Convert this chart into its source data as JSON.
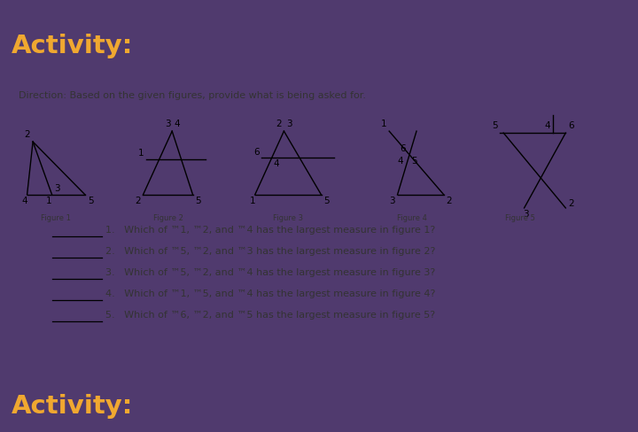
{
  "bg_purple": "#503a6e",
  "bg_white": "#ffffff",
  "bg_cream": "#f0ebe0",
  "activity_color": "#f0a830",
  "text_color": "#333333",
  "direction_text": "Direction: Based on the given figures, provide what is being asked for.",
  "figure_labels": [
    "Figure 1",
    "Figure 2",
    "Figure 3",
    "Figure 4",
    "Figure 5"
  ],
  "questions": [
    "1.   Which of ™1, ™2, and ™4 has the largest measure in figure 1?",
    "2.   Which of ™5, ™2, and ™3 has the largest measure in figure 2?",
    "3.   Which of ™5, ™2, and ™4 has the largest measure in figure 3?",
    "4.   Which of ™1, ™5, and ™4 has the largest measure in figure 4?",
    "5.   Which of ™6, ™2, and ™5 has the largest measure in figure 5?"
  ],
  "activity_text": "Activity:"
}
